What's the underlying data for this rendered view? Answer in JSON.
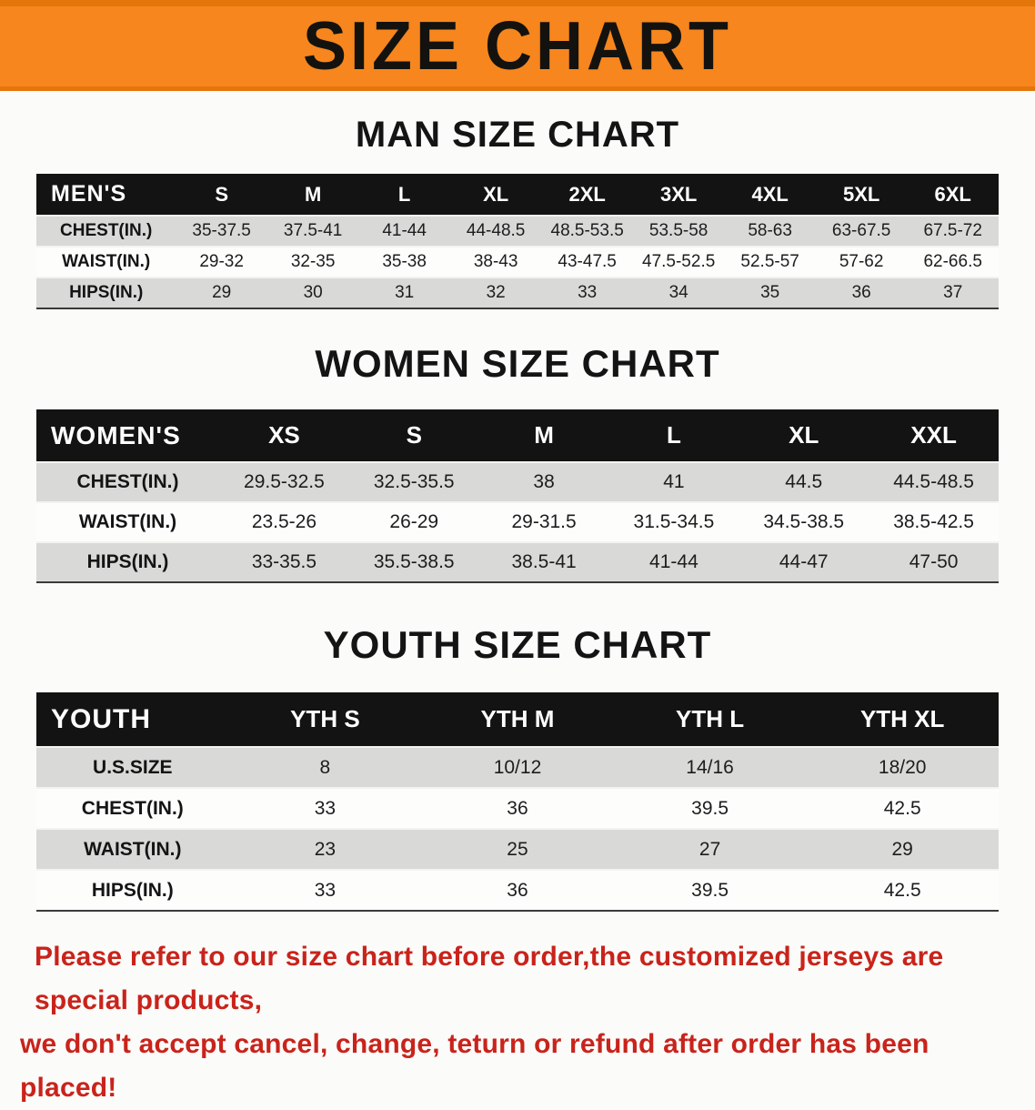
{
  "banner": {
    "title": "SIZE CHART"
  },
  "colors": {
    "banner_bg": "#f6861d",
    "table_header_bg": "#131313",
    "row_alt": "#d9d9d8",
    "disclaimer_red": "#c9231b"
  },
  "sections": [
    {
      "id": "men",
      "heading": "MAN SIZE CHART",
      "table": {
        "header": [
          "MEN'S",
          "S",
          "M",
          "L",
          "XL",
          "2XL",
          "3XL",
          "4XL",
          "5XL",
          "6XL"
        ],
        "rows": [
          [
            "CHEST(IN.)",
            "35-37.5",
            "37.5-41",
            "41-44",
            "44-48.5",
            "48.5-53.5",
            "53.5-58",
            "58-63",
            "63-67.5",
            "67.5-72"
          ],
          [
            "WAIST(IN.)",
            "29-32",
            "32-35",
            "35-38",
            "38-43",
            "43-47.5",
            "47.5-52.5",
            "52.5-57",
            "57-62",
            "62-66.5"
          ],
          [
            "HIPS(IN.)",
            "29",
            "30",
            "31",
            "32",
            "33",
            "34",
            "35",
            "36",
            "37"
          ]
        ]
      }
    },
    {
      "id": "women",
      "heading": "WOMEN SIZE CHART",
      "table": {
        "header": [
          "WOMEN'S",
          "XS",
          "S",
          "M",
          "L",
          "XL",
          "XXL"
        ],
        "rows": [
          [
            "CHEST(IN.)",
            "29.5-32.5",
            "32.5-35.5",
            "38",
            "41",
            "44.5",
            "44.5-48.5"
          ],
          [
            "WAIST(IN.)",
            "23.5-26",
            "26-29",
            "29-31.5",
            "31.5-34.5",
            "34.5-38.5",
            "38.5-42.5"
          ],
          [
            "HIPS(IN.)",
            "33-35.5",
            "35.5-38.5",
            "38.5-41",
            "41-44",
            "44-47",
            "47-50"
          ]
        ]
      }
    },
    {
      "id": "youth",
      "heading": "YOUTH SIZE CHART",
      "table": {
        "header": [
          "YOUTH",
          "YTH S",
          "YTH M",
          "YTH L",
          "YTH XL"
        ],
        "rows": [
          [
            "U.S.SIZE",
            "8",
            "10/12",
            "14/16",
            "18/20"
          ],
          [
            "CHEST(IN.)",
            "33",
            "36",
            "39.5",
            "42.5"
          ],
          [
            "WAIST(IN.)",
            "23",
            "25",
            "27",
            "29"
          ],
          [
            "HIPS(IN.)",
            "33",
            "36",
            "39.5",
            "42.5"
          ]
        ]
      }
    }
  ],
  "disclaimer": {
    "line1": "Please refer to our size chart before order,the customized jerseys are special products,",
    "line2": "we don't accept cancel, change, teturn or refund after order has been placed!"
  }
}
